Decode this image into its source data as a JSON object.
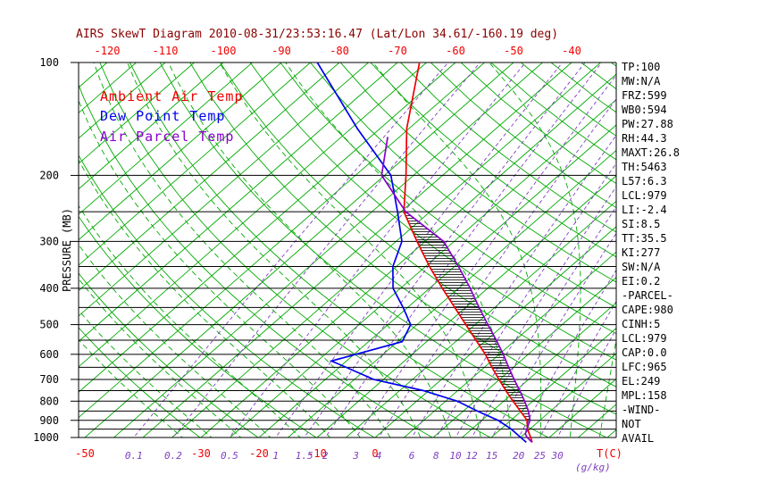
{
  "title": "AIRS SkewT Diagram 2010-08-31/23:53:16.47 (Lat/Lon 34.61/-160.19 deg)",
  "legend": {
    "ambient": "Ambient Air Temp",
    "dewpoint": "Dew Point Temp",
    "parcel": "Air Parcel Temp"
  },
  "axes": {
    "pressure_label": "PRESSURE (MB)",
    "pressure_ticks": [
      100,
      200,
      300,
      400,
      500,
      600,
      700,
      800,
      900,
      1000
    ],
    "top_temp_ticks": [
      -120,
      -110,
      -100,
      -90,
      -80,
      -70,
      -60,
      -50,
      -40
    ],
    "bottom_temp_ticks": [
      -50,
      -30,
      -20,
      -10,
      0
    ],
    "temp_unit_label": "T(C)",
    "mixing_ratio_ticks": [
      0.1,
      0.2,
      0.5,
      1,
      1.5,
      2,
      3,
      4,
      6,
      8,
      10,
      12,
      15,
      20,
      25,
      30
    ],
    "mixing_unit_label": "(g/kg)"
  },
  "stats_panel": [
    "TP:100",
    "MW:N/A",
    "FRZ:599",
    "WB0:594",
    "PW:27.88",
    "RH:44.3",
    "MAXT:26.8",
    "TH:5463",
    "L57:6.3",
    "LCL:979",
    "LI:-2.4",
    "SI:8.5",
    "TT:35.5",
    "KI:277",
    "SW:N/A",
    "EI:0.2",
    "-PARCEL-",
    "CAPE:980",
    "CINH:5",
    "LCL:979",
    "CAP:0.0",
    "LFC:965",
    "EL:249",
    "MPL:158",
    "-WIND-",
    "NOT",
    "AVAIL"
  ],
  "colors": {
    "title": "#8B0000",
    "temp_red": "#EE0000",
    "dewpoint_blue": "#0000EE",
    "parcel_violet": "#8800CC",
    "grid_green": "#00AA00",
    "mixing_violet": "#8040C0",
    "text_black": "#000000"
  },
  "chart_data": {
    "type": "line",
    "diagram": "skew-t-log-p",
    "pressure_axis_mb": {
      "range": [
        100,
        1000
      ],
      "gridlines": [
        100,
        200,
        250,
        300,
        350,
        400,
        450,
        500,
        550,
        600,
        650,
        700,
        750,
        800,
        850,
        900,
        950,
        1000
      ],
      "labeled": [
        100,
        200,
        300,
        400,
        500,
        600,
        700,
        800,
        900,
        1000
      ]
    },
    "temperature_axis_c": {
      "top_labels": [
        -120,
        -110,
        -100,
        -90,
        -80,
        -70,
        -60,
        -50,
        -40
      ],
      "bottom_labels": [
        -50,
        -30,
        -20,
        -10,
        0
      ],
      "isotherm_step": 5
    },
    "dry_adiabats_theta_k": {
      "min": 243,
      "max": 503,
      "step": 10
    },
    "moist_adiabats_start_c": [
      -30,
      -25,
      -20,
      -15,
      -10,
      -5,
      0,
      5,
      10,
      15,
      20,
      25,
      30,
      35,
      40,
      45
    ],
    "mixing_ratio_lines_g_kg": [
      0.1,
      0.2,
      0.5,
      1,
      1.5,
      2,
      3,
      4,
      6,
      8,
      10,
      12,
      15,
      20,
      25,
      30
    ],
    "series": [
      {
        "name": "Ambient Air Temp",
        "color": "#EE0000",
        "points_p_t": [
          [
            1030,
            28.0
          ],
          [
            1000,
            26.8
          ],
          [
            950,
            24.6
          ],
          [
            900,
            22.8
          ],
          [
            850,
            19.8
          ],
          [
            800,
            16.6
          ],
          [
            750,
            13.3
          ],
          [
            700,
            9.9
          ],
          [
            650,
            6.3
          ],
          [
            600,
            2.6
          ],
          [
            550,
            -1.8
          ],
          [
            500,
            -6.6
          ],
          [
            450,
            -11.9
          ],
          [
            400,
            -17.8
          ],
          [
            350,
            -24.3
          ],
          [
            300,
            -31.4
          ],
          [
            250,
            -39.5
          ],
          [
            200,
            -46.3
          ],
          [
            150,
            -55.4
          ],
          [
            100,
            -66.2
          ]
        ]
      },
      {
        "name": "Dew Point Temp",
        "color": "#0000EE",
        "points_p_t": [
          [
            1030,
            27.0
          ],
          [
            1000,
            25.1
          ],
          [
            950,
            21.8
          ],
          [
            900,
            17.8
          ],
          [
            850,
            12.4
          ],
          [
            800,
            7.0
          ],
          [
            750,
            -0.9
          ],
          [
            700,
            -11.7
          ],
          [
            650,
            -18.8
          ],
          [
            625,
            -22.6
          ],
          [
            555,
            -14.2
          ],
          [
            500,
            -16.1
          ],
          [
            450,
            -20.8
          ],
          [
            400,
            -26.3
          ],
          [
            350,
            -30.6
          ],
          [
            300,
            -34.0
          ],
          [
            250,
            -40.6
          ],
          [
            200,
            -48.9
          ],
          [
            150,
            -63.9
          ],
          [
            100,
            -83.8
          ]
        ]
      },
      {
        "name": "Air Parcel Temp",
        "color": "#8800CC",
        "points_p_t": [
          [
            1030,
            28.0
          ],
          [
            1000,
            26.2
          ],
          [
            979,
            25.2
          ],
          [
            950,
            24.5
          ],
          [
            900,
            23.3
          ],
          [
            850,
            21.2
          ],
          [
            800,
            18.6
          ],
          [
            750,
            15.7
          ],
          [
            700,
            12.5
          ],
          [
            650,
            9.2
          ],
          [
            600,
            5.7
          ],
          [
            550,
            1.7
          ],
          [
            500,
            -2.8
          ],
          [
            450,
            -7.7
          ],
          [
            400,
            -13.0
          ],
          [
            350,
            -19.3
          ],
          [
            300,
            -26.8
          ],
          [
            250,
            -39.2
          ],
          [
            200,
            -50.5
          ],
          [
            158,
            -57.0
          ]
        ]
      }
    ],
    "cape_hatch": {
      "between": [
        "Air Parcel Temp",
        "Ambient Air Temp"
      ],
      "p_range": [
        950,
        250
      ]
    }
  }
}
